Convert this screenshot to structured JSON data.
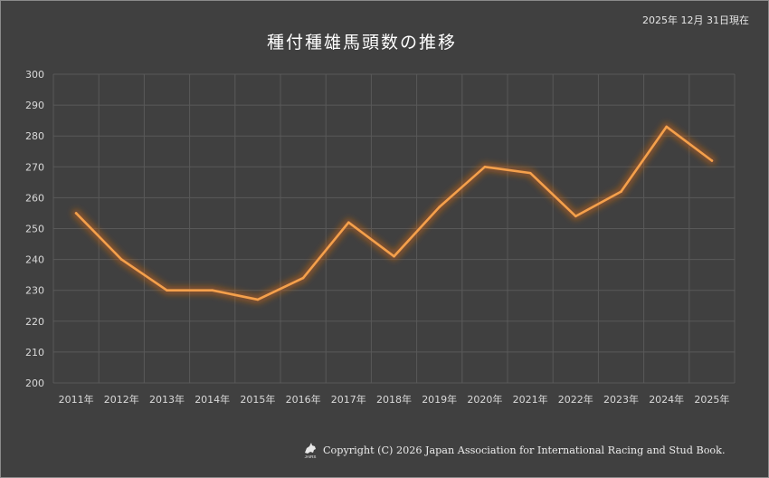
{
  "as_of": "2025年 12月 31日現在",
  "copyright": "Copyright (C) 2026 Japan Association for International Racing and Stud Book.",
  "logo_text": "JAIRS",
  "colors": {
    "background": "#404040",
    "grid": "#595959",
    "line": "#f4a04c",
    "glow": "#c8641a",
    "text": "#d9d9d9"
  },
  "chart_data": {
    "type": "line",
    "title": "種付種雄馬頭数の推移",
    "categories": [
      "2011年",
      "2012年",
      "2013年",
      "2014年",
      "2015年",
      "2016年",
      "2017年",
      "2018年",
      "2019年",
      "2020年",
      "2021年",
      "2022年",
      "2023年",
      "2024年",
      "2025年"
    ],
    "series": [
      {
        "name": "種付種雄馬頭数",
        "values": [
          255,
          240,
          230,
          230,
          227,
          234,
          252,
          241,
          257,
          270,
          268,
          254,
          262,
          283,
          272
        ]
      }
    ],
    "ylim": [
      200,
      300
    ],
    "yticks": [
      200,
      210,
      220,
      230,
      240,
      250,
      260,
      270,
      280,
      290,
      300
    ],
    "xlabel": "",
    "ylabel": "",
    "grid": true,
    "legend": "none"
  }
}
